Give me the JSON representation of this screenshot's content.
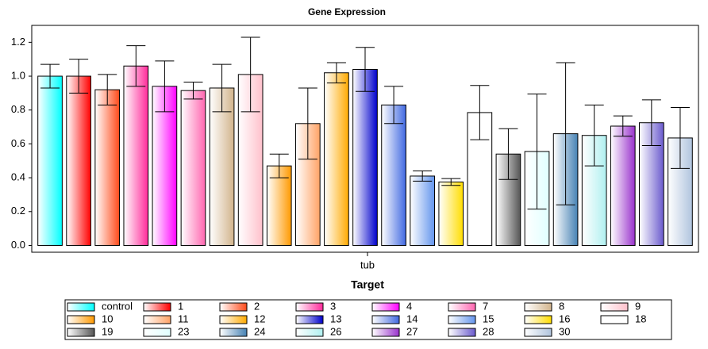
{
  "chart_data": {
    "type": "bar",
    "title": "Gene Expression",
    "x_label": "Target",
    "categories": [
      "tub"
    ],
    "ylim": [
      -0.04,
      1.3
    ],
    "yticks": [
      {
        "value": 0,
        "label": "0.0"
      },
      0.2,
      0.4,
      0.6,
      0.8,
      {
        "value": 1,
        "label": "1.0"
      },
      1.2
    ],
    "series": [
      {
        "name": "control",
        "color": "#00ffff",
        "values": [
          1.0
        ],
        "errors": [
          0.07
        ]
      },
      {
        "name": "1",
        "color": "#ff0000",
        "values": [
          1.0
        ],
        "errors": [
          0.1
        ]
      },
      {
        "name": "2",
        "color": "#ff4a1a",
        "values": [
          0.92
        ],
        "errors": [
          0.09
        ]
      },
      {
        "name": "3",
        "color": "#ff2a9a",
        "values": [
          1.06
        ],
        "errors": [
          0.12
        ]
      },
      {
        "name": "4",
        "color": "#ff00ff",
        "values": [
          0.94
        ],
        "errors": [
          0.15
        ]
      },
      {
        "name": "7",
        "color": "#ff66b0",
        "values": [
          0.915
        ],
        "errors": [
          0.05
        ]
      },
      {
        "name": "8",
        "color": "#d2b48c",
        "values": [
          0.93
        ],
        "errors": [
          0.14
        ]
      },
      {
        "name": "9",
        "color": "#ffc0cb",
        "values": [
          1.01
        ],
        "errors": [
          0.22
        ]
      },
      {
        "name": "10",
        "color": "#ff9900",
        "values": [
          0.47
        ],
        "errors": [
          0.07
        ]
      },
      {
        "name": "11",
        "color": "#ffa366",
        "values": [
          0.72
        ],
        "errors": [
          0.21
        ]
      },
      {
        "name": "12",
        "color": "#ffaa00",
        "values": [
          1.02
        ],
        "errors": [
          0.06
        ]
      },
      {
        "name": "13",
        "color": "#0000cc",
        "values": [
          1.04
        ],
        "errors": [
          0.13
        ]
      },
      {
        "name": "14",
        "color": "#4169e1",
        "values": [
          0.83
        ],
        "errors": [
          0.11
        ]
      },
      {
        "name": "15",
        "color": "#6495ed",
        "values": [
          0.41
        ],
        "errors": [
          0.03
        ]
      },
      {
        "name": "16",
        "color": "#ffdd00",
        "values": [
          0.375
        ],
        "errors": [
          0.02
        ]
      },
      {
        "name": "18",
        "color": "#ffffff",
        "values": [
          0.785
        ],
        "errors": [
          0.16
        ]
      },
      {
        "name": "19",
        "color": "#555555",
        "values": [
          0.54
        ],
        "errors": [
          0.15
        ]
      },
      {
        "name": "23",
        "color": "#e0ffff",
        "values": [
          0.555
        ],
        "errors": [
          0.34
        ]
      },
      {
        "name": "24",
        "color": "#4682b4",
        "values": [
          0.66
        ],
        "errors": [
          0.42
        ]
      },
      {
        "name": "26",
        "color": "#b0f0f0",
        "values": [
          0.65
        ],
        "errors": [
          0.18
        ]
      },
      {
        "name": "27",
        "color": "#9932cc",
        "values": [
          0.705
        ],
        "errors": [
          0.06
        ]
      },
      {
        "name": "28",
        "color": "#6a5acd",
        "values": [
          0.725
        ],
        "errors": [
          0.135
        ]
      },
      {
        "name": "30",
        "color": "#b0c4de",
        "values": [
          0.635
        ],
        "errors": [
          0.18
        ]
      }
    ]
  }
}
